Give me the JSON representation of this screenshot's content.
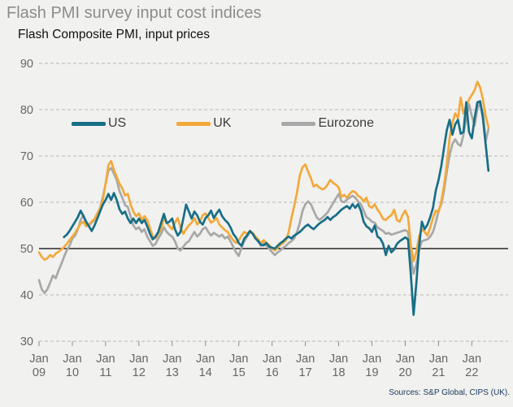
{
  "header": {
    "title": "Flash PMI survey input cost indices",
    "subtitle": "Flash Composite PMI, input prices"
  },
  "source_note": "Sources: S&P Global, CIPS (UK).",
  "colors": {
    "background": "#f1f1ef",
    "title_gray": "#8c8c8c",
    "axis_label_gray": "#666666",
    "gridline_gray": "#b8b8b8",
    "baseline_black": "#000000",
    "source_navy": "#17375d"
  },
  "chart_data": {
    "type": "line",
    "title": "Flash PMI survey input cost indices",
    "subtitle": "Flash Composite PMI, input prices",
    "ylim": [
      30,
      90
    ],
    "yticks": [
      30,
      40,
      50,
      60,
      70,
      80,
      90
    ],
    "baseline": 50,
    "grid": "dashed-horizontal",
    "legend_position": "top-inside",
    "x_month_label": "Jan",
    "x_tick_years": [
      "09",
      "10",
      "11",
      "12",
      "13",
      "14",
      "15",
      "16",
      "17",
      "18",
      "19",
      "20",
      "21",
      "22"
    ],
    "x_start": "2009-01",
    "x_end": "2022-07",
    "series": [
      {
        "name": "US",
        "color": "#186e87",
        "start_month_offset": 9,
        "values": [
          52.5,
          53.0,
          53.8,
          54.8,
          55.8,
          56.8,
          58.2,
          57.0,
          55.8,
          54.8,
          53.8,
          55.0,
          56.5,
          58.0,
          59.5,
          60.5,
          61.8,
          60.5,
          62.0,
          60.5,
          58.5,
          57.5,
          58.0,
          56.5,
          55.5,
          56.5,
          55.5,
          56.5,
          55.5,
          56.2,
          54.8,
          53.2,
          52.0,
          52.6,
          53.6,
          55.6,
          57.5,
          55.5,
          55.8,
          56.5,
          54.2,
          52.8,
          53.6,
          56.5,
          59.5,
          58.0,
          56.5,
          58.0,
          57.2,
          55.8,
          55.2,
          56.6,
          57.2,
          58.2,
          56.6,
          57.6,
          58.4,
          57.0,
          56.2,
          55.6,
          54.6,
          53.2,
          52.4,
          51.2,
          50.6,
          52.2,
          52.8,
          53.8,
          53.2,
          52.2,
          51.6,
          50.8,
          50.7,
          51.2,
          50.4,
          50.2,
          50.0,
          50.6,
          51.2,
          51.6,
          52.2,
          52.6,
          52.2,
          52.8,
          53.2,
          53.6,
          54.2,
          54.8,
          55.2,
          54.6,
          54.2,
          54.8,
          55.4,
          55.8,
          56.2,
          56.8,
          56.2,
          56.8,
          57.2,
          57.8,
          58.4,
          58.8,
          59.2,
          58.6,
          59.6,
          58.8,
          59.6,
          58.2,
          55.8,
          54.8,
          54.4,
          53.6,
          55.0,
          52.6,
          52.2,
          51.0,
          48.6,
          50.6,
          49.2,
          49.8,
          51.0,
          51.6,
          52.0,
          52.4,
          52.0,
          44.5,
          35.7,
          42.5,
          50.5,
          55.8,
          54.2,
          55.2,
          56.8,
          58.8,
          62.5,
          64.8,
          67.8,
          71.8,
          75.6,
          77.8,
          74.6,
          76.8,
          77.8,
          74.8,
          75.2,
          81.6,
          75.2,
          73.8,
          78.2,
          81.6,
          81.8,
          78.2,
          72.5,
          66.8
        ]
      },
      {
        "name": "UK",
        "color": "#f2a93b",
        "start_month_offset": 0,
        "values": [
          49.2,
          48.2,
          47.6,
          47.9,
          48.6,
          48.2,
          48.9,
          49.3,
          49.8,
          50.3,
          51.0,
          51.8,
          52.6,
          53.4,
          54.4,
          55.4,
          55.8,
          54.8,
          55.2,
          55.8,
          56.4,
          57.6,
          58.8,
          60.5,
          64.0,
          68.0,
          68.9,
          67.0,
          65.5,
          64.0,
          63.0,
          61.5,
          61.8,
          59.5,
          58.0,
          57.0,
          57.6,
          56.2,
          57.0,
          56.2,
          54.4,
          52.6,
          52.2,
          53.2,
          54.2,
          56.6,
          55.6,
          54.8,
          54.2,
          55.6,
          56.6,
          54.6,
          53.2,
          54.2,
          55.0,
          55.6,
          56.6,
          55.2,
          55.8,
          57.2,
          57.6,
          56.6,
          55.6,
          56.0,
          56.6,
          55.2,
          54.6,
          54.0,
          53.6,
          52.6,
          51.8,
          51.2,
          51.8,
          52.8,
          53.6,
          53.2,
          53.8,
          53.4,
          52.6,
          52.0,
          51.2,
          51.8,
          51.2,
          50.8,
          50.0,
          49.6,
          50.2,
          50.8,
          51.2,
          51.8,
          53.6,
          56.6,
          59.2,
          62.2,
          65.8,
          67.6,
          68.2,
          66.6,
          65.2,
          63.4,
          63.8,
          63.2,
          62.8,
          63.0,
          63.8,
          64.8,
          64.2,
          63.8,
          63.2,
          61.2,
          61.6,
          61.0,
          61.8,
          62.4,
          62.2,
          61.4,
          61.0,
          60.2,
          61.0,
          59.2,
          58.8,
          59.6,
          58.4,
          57.6,
          56.4,
          56.2,
          56.8,
          57.2,
          58.4,
          56.2,
          55.8,
          57.2,
          58.2,
          56.8,
          50.8,
          47.3,
          49.2,
          52.6,
          54.2,
          53.6,
          52.8,
          54.6,
          56.6,
          58.2,
          57.8,
          60.2,
          63.6,
          68.2,
          73.8,
          77.2,
          79.2,
          78.2,
          82.6,
          79.2,
          80.8,
          82.2,
          83.2,
          84.2,
          86.0,
          84.8,
          82.2,
          78.6,
          76.2
        ]
      },
      {
        "name": "Eurozone",
        "color": "#a8a8a8",
        "start_month_offset": 0,
        "values": [
          43.2,
          41.2,
          40.4,
          41.2,
          42.6,
          44.2,
          43.6,
          45.2,
          46.6,
          48.2,
          49.6,
          50.6,
          52.2,
          52.8,
          54.2,
          56.2,
          57.2,
          55.6,
          55.0,
          55.6,
          56.2,
          57.2,
          58.8,
          61.2,
          64.0,
          66.8,
          67.4,
          66.2,
          64.8,
          62.4,
          61.0,
          59.4,
          59.0,
          57.0,
          55.0,
          54.2,
          54.6,
          53.6,
          54.2,
          52.6,
          51.6,
          50.6,
          51.0,
          52.2,
          53.2,
          54.6,
          53.6,
          53.0,
          52.6,
          51.6,
          50.0,
          49.6,
          50.4,
          51.2,
          51.6,
          52.6,
          53.6,
          52.6,
          53.2,
          54.2,
          54.6,
          53.6,
          52.8,
          53.4,
          53.0,
          52.6,
          53.0,
          52.2,
          52.6,
          51.6,
          50.4,
          49.2,
          48.4,
          50.2,
          51.6,
          52.6,
          53.6,
          53.2,
          52.6,
          51.6,
          50.6,
          51.2,
          50.6,
          50.0,
          49.2,
          48.6,
          49.2,
          49.6,
          50.2,
          50.6,
          51.2,
          51.6,
          52.2,
          53.6,
          55.6,
          58.2,
          59.6,
          60.2,
          59.6,
          58.2,
          56.8,
          56.2,
          56.6,
          57.2,
          57.8,
          58.8,
          59.8,
          60.8,
          61.8,
          60.2,
          60.0,
          60.6,
          61.0,
          61.4,
          61.0,
          60.2,
          59.6,
          58.2,
          56.8,
          56.4,
          55.8,
          55.6,
          54.6,
          54.2,
          53.8,
          53.2,
          53.4,
          53.0,
          53.2,
          53.4,
          53.6,
          53.8,
          54.0,
          53.6,
          48.2,
          44.6,
          46.6,
          49.6,
          51.6,
          51.8,
          52.0,
          52.6,
          53.6,
          55.6,
          58.2,
          59.6,
          62.6,
          66.6,
          70.2,
          72.6,
          73.6,
          72.6,
          72.2,
          74.6,
          78.2,
          81.2,
          78.6,
          76.6,
          80.2,
          81.4,
          79.2,
          73.2,
          75.8
        ]
      }
    ]
  }
}
